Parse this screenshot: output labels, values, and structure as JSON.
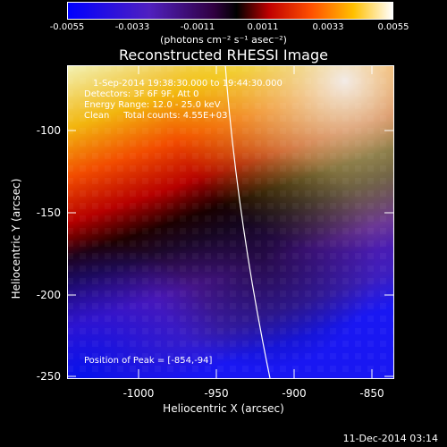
{
  "colorbar": {
    "ticks": [
      "-0.0055",
      "-0.0033",
      "-0.0011",
      "0.0011",
      "0.0033",
      "0.0055"
    ],
    "unit_label": "(photons cm⁻² s⁻¹ asec⁻²)"
  },
  "title": "Reconstructed RHESSI Image",
  "annotations": {
    "time": "1-Sep-2014 19:38:30.000 to 19:44:30.000",
    "detectors": "Detectors: 3F 6F 9F, Att 0",
    "energy": "Energy Range: 12.0 - 25.0 keV",
    "clean": "Clean     Total counts: 4.55E+03",
    "peak": "Position of Peak = [-854,-94]"
  },
  "axes": {
    "xlabel": "Heliocentric X (arcsec)",
    "ylabel": "Heliocentric Y (arcsec)",
    "xticks": [
      "-1000",
      "-950",
      "-900",
      "-850"
    ],
    "yticks": [
      "-100",
      "-150",
      "-200",
      "-250"
    ]
  },
  "footer": {
    "timestamp": "11-Dec-2014 03:14"
  },
  "colors": {
    "hot_low": "#0000ff",
    "hot_mid": "#ff4400",
    "hot_high": "#ffffff"
  }
}
